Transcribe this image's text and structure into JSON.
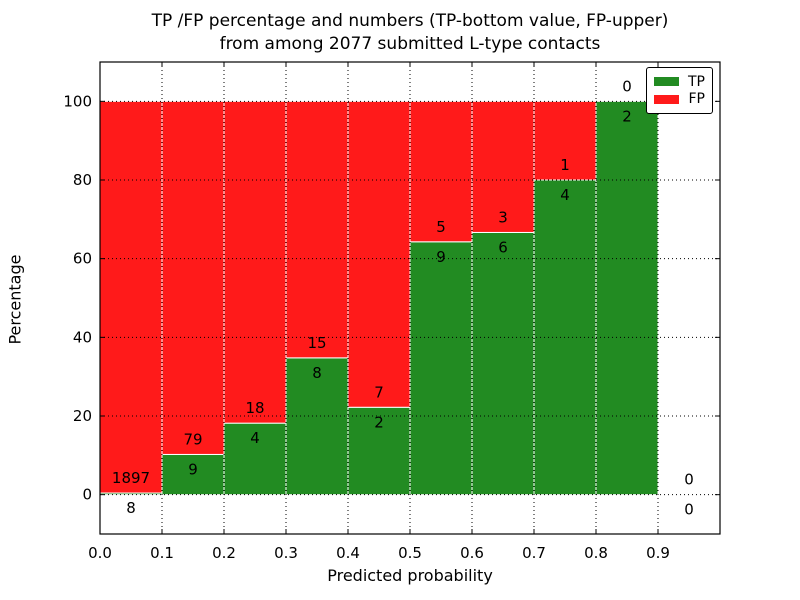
{
  "chart_data": {
    "type": "bar",
    "stacked": true,
    "title_line1": "TP /FP percentage and numbers (TP-bottom value, FP-upper)",
    "title_line2": "from among 2077 submitted L-type contacts",
    "xlabel": "Predicted probability",
    "ylabel": "Percentage",
    "xlim": [
      0.0,
      1.0
    ],
    "ylim": [
      -10,
      110
    ],
    "xticks": [
      "0.0",
      "0.1",
      "0.2",
      "0.3",
      "0.4",
      "0.5",
      "0.6",
      "0.7",
      "0.8",
      "0.9"
    ],
    "yticks": [
      0,
      20,
      40,
      60,
      80,
      100
    ],
    "grid": true,
    "grid_style": "dotted",
    "total_contacts": 2077,
    "bins": [
      {
        "x0": 0.0,
        "x1": 0.1,
        "tp": 8,
        "fp": 1897
      },
      {
        "x0": 0.1,
        "x1": 0.2,
        "tp": 9,
        "fp": 79
      },
      {
        "x0": 0.2,
        "x1": 0.3,
        "tp": 4,
        "fp": 18
      },
      {
        "x0": 0.3,
        "x1": 0.4,
        "tp": 8,
        "fp": 15
      },
      {
        "x0": 0.4,
        "x1": 0.5,
        "tp": 2,
        "fp": 7
      },
      {
        "x0": 0.5,
        "x1": 0.6,
        "tp": 9,
        "fp": 5
      },
      {
        "x0": 0.6,
        "x1": 0.7,
        "tp": 6,
        "fp": 3
      },
      {
        "x0": 0.7,
        "x1": 0.8,
        "tp": 4,
        "fp": 1
      },
      {
        "x0": 0.8,
        "x1": 0.9,
        "tp": 2,
        "fp": 0
      },
      {
        "x0": 0.9,
        "x1": 1.0,
        "tp": 0,
        "fp": 0
      }
    ],
    "colors": {
      "tp": "#228B22",
      "fp": "#FF1A1A",
      "bar_edge": "#FFFFFF",
      "grid": "#000000",
      "spine": "#000000",
      "background": "#FFFFFF"
    },
    "legend": [
      {
        "label": "TP",
        "color": "#228B22"
      },
      {
        "label": "FP",
        "color": "#FF1A1A"
      }
    ],
    "legend_position": "upper-right"
  }
}
